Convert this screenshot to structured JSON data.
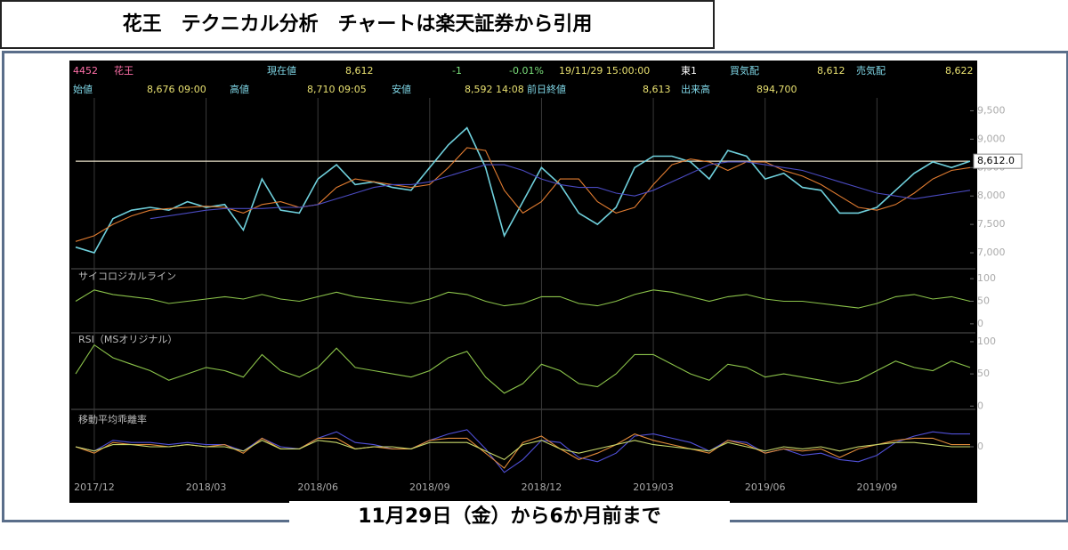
{
  "header": {
    "title": "花王　テクニカル分析　チャートは楽天証券から引用"
  },
  "footer": {
    "caption": "11月29日（金）から6か月前まで"
  },
  "quote": {
    "row1": [
      "4452",
      "花王",
      "現在値",
      "8,612",
      "-1",
      "-0.01%",
      "19/11/29 15:00:00",
      "東1",
      "買気配",
      "8,612",
      "売気配",
      "8,622"
    ],
    "row2": [
      "始値",
      "8,676 09:00",
      "高値",
      "8,710 09:05",
      "安値",
      "8,592 14:08",
      "前日終値",
      "8,613",
      "出来高",
      "894,700"
    ]
  },
  "chart_data": [
    {
      "type": "line",
      "ylim": [
        6750,
        9570
      ],
      "yticks": [
        {
          "value": 7000,
          "label": "7,000"
        },
        {
          "value": 7500,
          "label": "7,500"
        },
        {
          "value": 8000,
          "label": "8,000"
        },
        {
          "value": 8500,
          "label": "8,500"
        },
        {
          "value": 9000,
          "label": "9,000"
        },
        {
          "value": 9500,
          "label": "9,500"
        }
      ],
      "hline": {
        "value": 8612,
        "label": "8,612.0"
      },
      "series": [
        {
          "color": "#6fd0dc",
          "values": [
            7100,
            7000,
            7600,
            7750,
            7800,
            7750,
            7900,
            7800,
            7850,
            7400,
            8300,
            7750,
            7700,
            8300,
            8550,
            8200,
            8250,
            8150,
            8100,
            8500,
            8900,
            9200,
            8500,
            7300,
            7900,
            8500,
            8200,
            7700,
            7500,
            7800,
            8500,
            8700,
            8700,
            8600,
            8300,
            8800,
            8700,
            8300,
            8400,
            8150,
            8100,
            7700,
            7700,
            7800,
            8100,
            8400,
            8600,
            8500,
            8612
          ]
        },
        {
          "color": "#e07b30",
          "values": [
            7200,
            7300,
            7500,
            7650,
            7750,
            7780,
            7800,
            7820,
            7800,
            7700,
            7850,
            7900,
            7800,
            7850,
            8150,
            8300,
            8250,
            8200,
            8150,
            8200,
            8500,
            8850,
            8800,
            8100,
            7700,
            7900,
            8300,
            8300,
            7900,
            7700,
            7800,
            8200,
            8550,
            8650,
            8600,
            8450,
            8600,
            8600,
            8450,
            8350,
            8200,
            8000,
            7800,
            7750,
            7850,
            8050,
            8300,
            8450,
            8500
          ]
        },
        {
          "color": "#4a4ac0",
          "values": [
            null,
            null,
            null,
            null,
            7600,
            7650,
            7700,
            7750,
            7780,
            7780,
            7780,
            7800,
            7800,
            7850,
            7950,
            8050,
            8150,
            8200,
            8200,
            8250,
            8350,
            8450,
            8550,
            8550,
            8450,
            8300,
            8200,
            8150,
            8150,
            8050,
            8000,
            8100,
            8250,
            8400,
            8550,
            8600,
            8600,
            8550,
            8500,
            8450,
            8350,
            8250,
            8150,
            8050,
            8000,
            7950,
            8000,
            8050,
            8100
          ]
        }
      ]
    },
    {
      "type": "line",
      "title": "サイコロジカルライン",
      "ylim": [
        -16,
        116
      ],
      "yticks": [
        0,
        50,
        100
      ],
      "series": [
        {
          "color": "#8bc34a",
          "values": [
            50,
            75,
            65,
            60,
            55,
            45,
            50,
            55,
            60,
            55,
            65,
            55,
            50,
            60,
            70,
            60,
            55,
            50,
            45,
            55,
            70,
            65,
            50,
            40,
            45,
            60,
            60,
            45,
            40,
            50,
            65,
            75,
            70,
            60,
            50,
            60,
            65,
            55,
            50,
            50,
            45,
            40,
            35,
            45,
            60,
            65,
            55,
            60,
            50
          ]
        }
      ]
    },
    {
      "type": "line",
      "title": "RSI（MSオリジナル）",
      "ylim": [
        -1,
        111
      ],
      "yticks": [
        0,
        50,
        100
      ],
      "series": [
        {
          "color": "#8bc34a",
          "values": [
            50,
            95,
            75,
            65,
            55,
            40,
            50,
            60,
            55,
            45,
            80,
            55,
            45,
            60,
            90,
            60,
            55,
            50,
            45,
            55,
            75,
            85,
            45,
            20,
            35,
            65,
            55,
            35,
            30,
            50,
            80,
            80,
            65,
            50,
            40,
            65,
            60,
            45,
            50,
            45,
            40,
            35,
            40,
            55,
            70,
            60,
            55,
            70,
            60
          ]
        }
      ]
    },
    {
      "type": "line",
      "title": "移動平均乖離率",
      "ylim": [
        -15,
        15
      ],
      "yticks": [
        0
      ],
      "grid": true,
      "categories": [
        null,
        "2017/12",
        null,
        null,
        null,
        null,
        null,
        "2018/03",
        null,
        null,
        null,
        null,
        null,
        "2018/06",
        null,
        null,
        null,
        null,
        null,
        "2018/09",
        null,
        null,
        null,
        null,
        null,
        "2018/12",
        null,
        null,
        null,
        null,
        null,
        "2019/03",
        null,
        null,
        null,
        null,
        null,
        "2019/06",
        null,
        null,
        null,
        null,
        null,
        "2019/09",
        null,
        null,
        null,
        null,
        null
      ],
      "series": [
        {
          "color": "#5050d8",
          "values": [
            0,
            -2,
            3,
            2,
            2,
            1,
            2,
            1,
            1,
            -2,
            4,
            0,
            -1,
            4,
            7,
            2,
            1,
            -1,
            -1,
            3,
            6,
            8,
            -1,
            -12,
            -6,
            3,
            2,
            -5,
            -7,
            -3,
            5,
            6,
            4,
            2,
            -2,
            3,
            2,
            -3,
            -1,
            -4,
            -3,
            -6,
            -7,
            -4,
            2,
            5,
            7,
            6,
            6
          ]
        },
        {
          "color": "#e08a3a",
          "values": [
            0,
            -3,
            2,
            1,
            1,
            0,
            1,
            0,
            1,
            -3,
            4,
            -1,
            -1,
            4,
            4,
            -1,
            0,
            -1,
            -1,
            3,
            4,
            4,
            -3,
            -10,
            2,
            5,
            -1,
            -6,
            -3,
            1,
            6,
            3,
            1,
            -1,
            -3,
            3,
            1,
            -3,
            -1,
            -2,
            -1,
            -5,
            -1,
            1,
            3,
            4,
            4,
            1,
            1
          ]
        },
        {
          "color": "#c8d86a",
          "values": [
            0,
            -2,
            1,
            1,
            0,
            0,
            1,
            0,
            0,
            -2,
            3,
            -1,
            -1,
            3,
            2,
            -1,
            0,
            0,
            -1,
            2,
            2,
            2,
            -2,
            -6,
            1,
            3,
            -1,
            -3,
            -1,
            1,
            3,
            1,
            0,
            -1,
            -2,
            2,
            0,
            -2,
            0,
            -1,
            0,
            -2,
            0,
            1,
            2,
            2,
            1,
            0,
            0
          ]
        }
      ]
    }
  ]
}
